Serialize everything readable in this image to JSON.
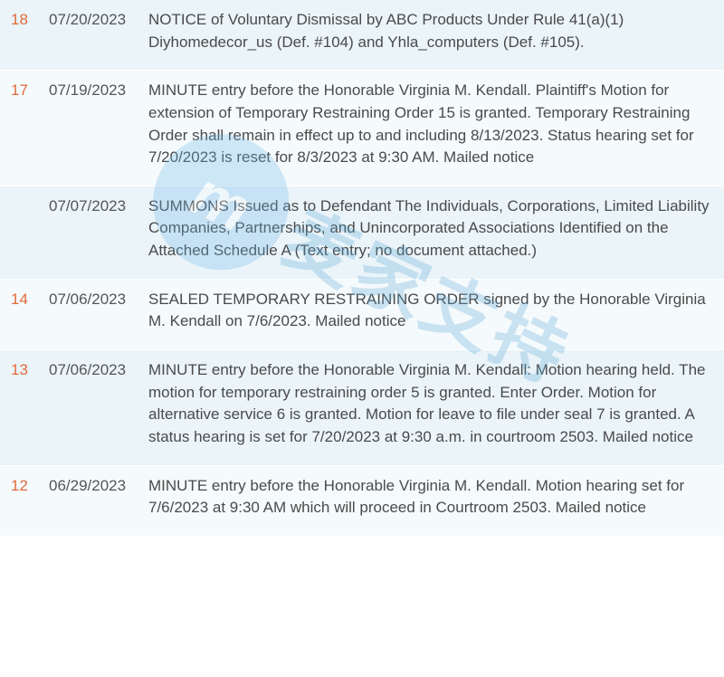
{
  "colors": {
    "row_alt_bg": "#eaf4f9",
    "row_bg": "#f5fafc",
    "num_link": "#e06a3b",
    "text": "#4a4a4a",
    "date": "#555555",
    "watermark_blue": "#6bb7e8",
    "watermark_text": "#5aa8d8"
  },
  "watermark": {
    "glyph": "m",
    "text": "麦家支持"
  },
  "entries": [
    {
      "num": "18",
      "date": "07/20/2023",
      "text": "NOTICE of Voluntary Dismissal by ABC Products Under Rule 41(a)(1) Diyhomedecor_us (Def. #104) and Yhla_computers (Def. #105).",
      "bg": "#eaf4f9",
      "has_link": true
    },
    {
      "num": "17",
      "date": "07/19/2023",
      "text": "MINUTE entry before the Honorable Virginia M. Kendall. Plaintiff's Motion for extension of Temporary Restraining Order 15 is granted. Temporary Restraining Order shall remain in effect up to and including 8/13/2023. Status hearing set for 7/20/2023 is reset for 8/3/2023 at 9:30 AM. Mailed notice",
      "bg": "#f5fafc",
      "has_link": true
    },
    {
      "num": "",
      "date": "07/07/2023",
      "text": "SUMMONS Issued as to Defendant The Individuals, Corporations, Limited Liability Companies, Partnerships, and Unincorporated Associations Identified on the Attached Schedule A (Text entry; no document attached.)",
      "bg": "#eaf4f9",
      "has_link": false
    },
    {
      "num": "14",
      "date": "07/06/2023",
      "text": "SEALED TEMPORARY RESTRAINING ORDER signed by the Honorable Virginia M. Kendall on 7/6/2023. Mailed notice",
      "bg": "#f5fafc",
      "has_link": true
    },
    {
      "num": "13",
      "date": "07/06/2023",
      "text": "MINUTE entry before the Honorable Virginia M. Kendall: Motion hearing held. The motion for temporary restraining order 5 is granted. Enter Order. Motion for alternative service 6 is granted. Motion for leave to file under seal 7 is granted. A status hearing is set for 7/20/2023 at 9:30 a.m. in courtroom 2503. Mailed notice",
      "bg": "#eaf4f9",
      "has_link": true
    },
    {
      "num": "12",
      "date": "06/29/2023",
      "text": "MINUTE entry before the Honorable Virginia M. Kendall. Motion hearing set for 7/6/2023 at 9:30 AM which will proceed in Courtroom 2503. Mailed notice",
      "bg": "#f5fafc",
      "has_link": true
    }
  ]
}
